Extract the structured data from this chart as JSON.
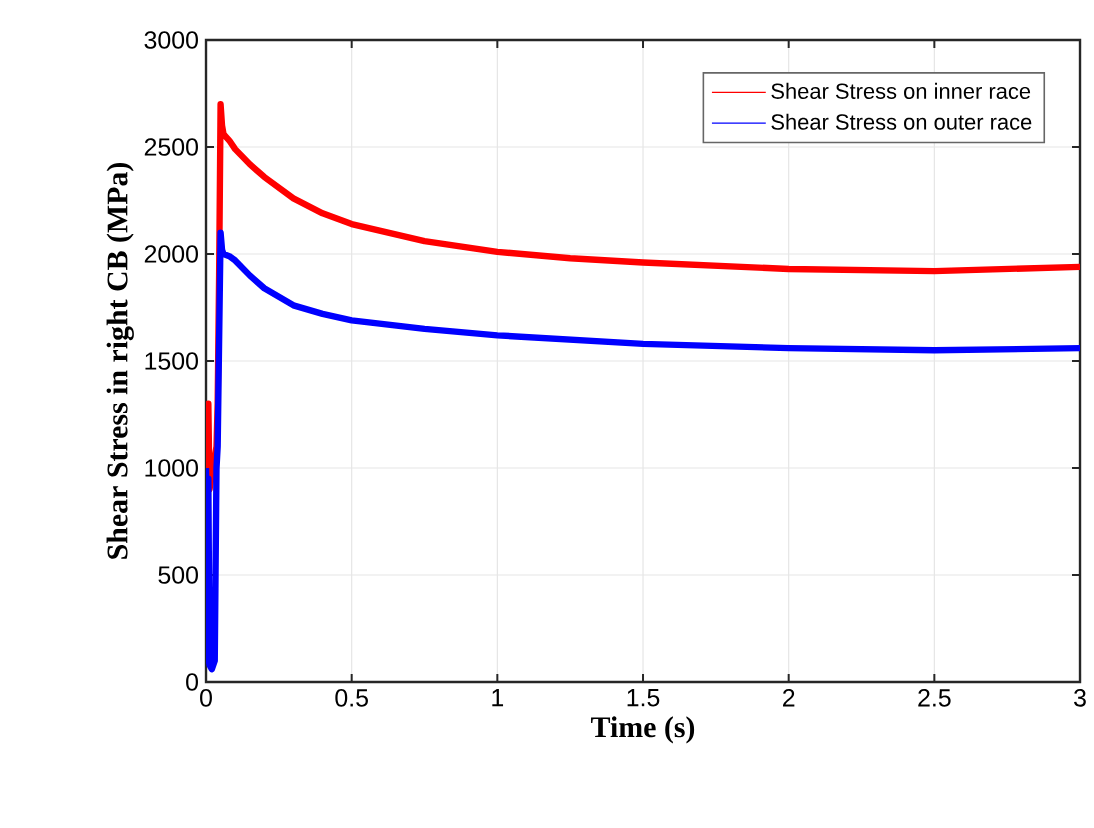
{
  "chart_data": {
    "type": "line",
    "xlabel": "Time (s)",
    "ylabel": "Shear Stress in right CB (MPa)",
    "xlim": [
      0,
      3
    ],
    "ylim": [
      0,
      3000
    ],
    "xticks": [
      0,
      0.5,
      1,
      1.5,
      2,
      2.5,
      3
    ],
    "yticks": [
      0,
      500,
      1000,
      1500,
      2000,
      2500,
      3000
    ],
    "grid": true,
    "legend": "top right",
    "series": [
      {
        "name": "Shear Stress on inner race",
        "color": "#ff0000",
        "x": [
          0,
          0.004,
          0.008,
          0.012,
          0.02,
          0.03,
          0.036,
          0.04,
          0.045,
          0.05,
          0.055,
          0.06,
          0.08,
          0.1,
          0.15,
          0.2,
          0.3,
          0.4,
          0.5,
          0.75,
          1,
          1.25,
          1.5,
          2,
          2.5,
          3
        ],
        "values": [
          1250,
          1000,
          1300,
          900,
          null,
          null,
          1100,
          1300,
          1900,
          2700,
          2600,
          2560,
          2530,
          2490,
          2420,
          2360,
          2260,
          2190,
          2140,
          2060,
          2010,
          1980,
          1960,
          1930,
          1920,
          1940
        ]
      },
      {
        "name": "Shear Stress on outer race",
        "color": "#0000ff",
        "x": [
          0,
          0.004,
          0.008,
          0.012,
          0.02,
          0.03,
          0.036,
          0.04,
          0.045,
          0.05,
          0.055,
          0.06,
          0.08,
          0.1,
          0.15,
          0.2,
          0.3,
          0.4,
          0.5,
          0.75,
          1,
          1.25,
          1.5,
          2,
          2.5,
          3
        ],
        "values": [
          1000,
          100,
          950,
          80,
          60,
          100,
          1000,
          1100,
          1600,
          2100,
          2020,
          2000,
          1990,
          1970,
          1900,
          1840,
          1760,
          1720,
          1690,
          1650,
          1620,
          1600,
          1580,
          1560,
          1550,
          1560
        ]
      }
    ]
  }
}
